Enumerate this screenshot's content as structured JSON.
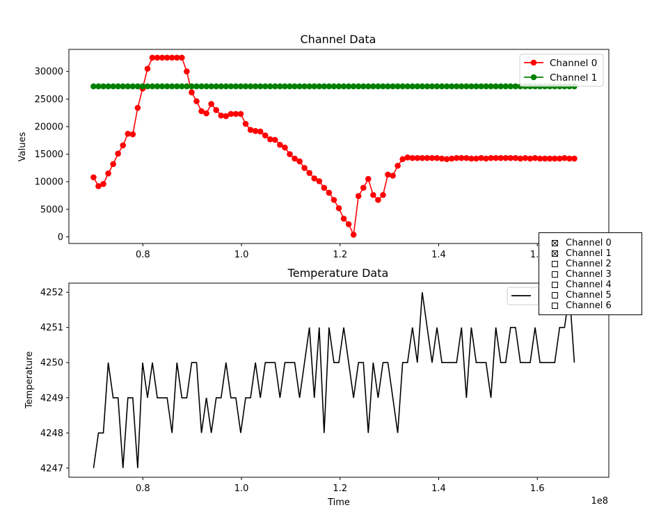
{
  "chart_data": [
    {
      "type": "line",
      "title": "Channel Data",
      "xlabel": "",
      "ylabel": "Values",
      "xlim": [
        0.65,
        1.745
      ],
      "ylim": [
        -1200,
        34000
      ],
      "x_ticks": [
        0.8,
        1.0,
        1.2,
        1.4,
        1.6
      ],
      "x_tick_labels": [
        "0.8",
        "1.0",
        "1.2",
        "1.4",
        "1.6"
      ],
      "y_ticks": [
        0,
        5000,
        10000,
        15000,
        20000,
        25000,
        30000
      ],
      "y_tick_labels": [
        "0",
        "5000",
        "10000",
        "15000",
        "20000",
        "25000",
        "30000"
      ],
      "legend": "top-right",
      "grid": false,
      "x_start": 0.7,
      "x_step": 0.00995,
      "series": [
        {
          "name": "Channel 0",
          "color": "#ff0000",
          "marker": "circle",
          "values": [
            10800,
            9200,
            9600,
            11500,
            13200,
            15100,
            16600,
            18700,
            18600,
            23400,
            26900,
            30500,
            32500,
            32500,
            32500,
            32500,
            32500,
            32500,
            32500,
            30000,
            26200,
            24600,
            22800,
            22400,
            24100,
            23000,
            22000,
            21900,
            22300,
            22300,
            22300,
            20500,
            19400,
            19200,
            19100,
            18400,
            17700,
            17600,
            16700,
            16200,
            15000,
            14200,
            13700,
            12500,
            11600,
            10600,
            10100,
            8900,
            8000,
            6700,
            5200,
            3300,
            2300,
            400,
            7400,
            8900,
            10500,
            7600,
            6700,
            7600,
            11300,
            11100,
            12900,
            14100,
            14400,
            14300,
            14300,
            14300,
            14300,
            14300,
            14300,
            14200,
            14100,
            14200,
            14300,
            14300,
            14300,
            14200,
            14200,
            14300,
            14200,
            14300,
            14300,
            14300,
            14300,
            14300,
            14300,
            14200,
            14300,
            14200,
            14300,
            14200,
            14200,
            14200,
            14200,
            14200,
            14300,
            14200,
            14200
          ]
        },
        {
          "name": "Channel 1",
          "color": "#008000",
          "marker": "circle",
          "values": [
            27300,
            27300,
            27300,
            27300,
            27300,
            27300,
            27300,
            27300,
            27300,
            27300,
            27300,
            27300,
            27300,
            27300,
            27300,
            27300,
            27300,
            27300,
            27300,
            27300,
            27300,
            27300,
            27300,
            27300,
            27300,
            27300,
            27300,
            27300,
            27300,
            27300,
            27300,
            27300,
            27300,
            27300,
            27300,
            27300,
            27300,
            27300,
            27300,
            27300,
            27300,
            27300,
            27300,
            27300,
            27300,
            27300,
            27300,
            27300,
            27300,
            27300,
            27300,
            27300,
            27300,
            27300,
            27300,
            27300,
            27300,
            27300,
            27300,
            27300,
            27300,
            27300,
            27300,
            27300,
            27300,
            27300,
            27300,
            27300,
            27300,
            27300,
            27300,
            27300,
            27300,
            27300,
            27300,
            27300,
            27300,
            27300,
            27300,
            27300,
            27300,
            27300,
            27300,
            27300,
            27300,
            27300,
            27300,
            27300,
            27300,
            27300,
            27300,
            27300,
            27300,
            27300,
            27300,
            27300,
            27300,
            27300,
            27300
          ]
        }
      ]
    },
    {
      "type": "line",
      "title": "Temperature Data",
      "xlabel": "Time",
      "ylabel": "Temperature",
      "x_offset_label": "1e8",
      "xlim": [
        0.65,
        1.745
      ],
      "ylim": [
        4246.74,
        4252.26
      ],
      "x_ticks": [
        0.8,
        1.0,
        1.2,
        1.4,
        1.6
      ],
      "x_tick_labels": [
        "0.8",
        "1.0",
        "1.2",
        "1.4",
        "1.6"
      ],
      "y_ticks": [
        4247,
        4248,
        4249,
        4250,
        4251,
        4252
      ],
      "y_tick_labels": [
        "4247",
        "4248",
        "4249",
        "4250",
        "4251",
        "4252"
      ],
      "legend": "top-right",
      "grid": false,
      "x_start": 0.7,
      "x_step": 0.00995,
      "series": [
        {
          "name": "",
          "color": "#000000",
          "marker": "none",
          "values": [
            4247,
            4248,
            4248,
            4250,
            4249,
            4249,
            4247,
            4249,
            4249,
            4247,
            4250,
            4249,
            4250,
            4249,
            4249,
            4249,
            4248,
            4250,
            4249,
            4249,
            4250,
            4250,
            4248,
            4249,
            4248,
            4249,
            4249,
            4250,
            4249,
            4249,
            4248,
            4249,
            4249,
            4250,
            4249,
            4250,
            4250,
            4250,
            4249,
            4250,
            4250,
            4250,
            4249,
            4250,
            4251,
            4249,
            4251,
            4248,
            4251,
            4250,
            4250,
            4251,
            4250,
            4249,
            4250,
            4250,
            4248,
            4250,
            4249,
            4250,
            4250,
            4249,
            4248,
            4250,
            4250,
            4251,
            4250,
            4252,
            4251,
            4250,
            4251,
            4250,
            4250,
            4250,
            4250,
            4251,
            4249,
            4251,
            4250,
            4250,
            4250,
            4249,
            4251,
            4250,
            4250,
            4251,
            4251,
            4250,
            4250,
            4250,
            4251,
            4250,
            4250,
            4250,
            4250,
            4251,
            4251,
            4252,
            4250
          ]
        }
      ]
    }
  ],
  "check_panel": {
    "items": [
      {
        "label": "Channel 0",
        "checked": true
      },
      {
        "label": "Channel 1",
        "checked": true
      },
      {
        "label": "Channel 2",
        "checked": false
      },
      {
        "label": "Channel 3",
        "checked": false
      },
      {
        "label": "Channel 4",
        "checked": false
      },
      {
        "label": "Channel 5",
        "checked": false
      },
      {
        "label": "Channel 6",
        "checked": false
      }
    ]
  }
}
